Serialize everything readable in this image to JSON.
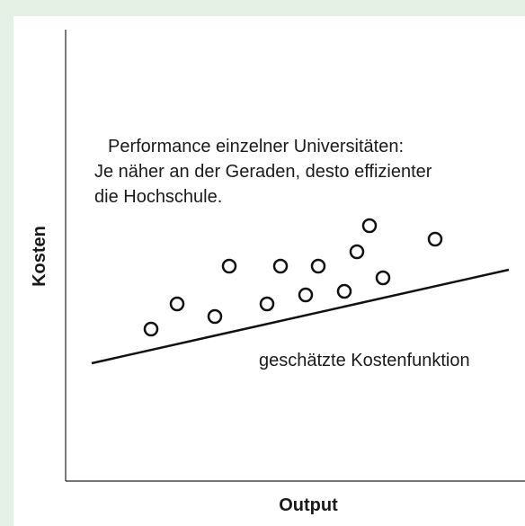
{
  "diagram": {
    "y_axis_label": "Kosten",
    "x_axis_label": "Output",
    "annotation": [
      "Performance einzelner Universitäten:",
      "Je näher an der Geraden, desto effizienter",
      "die Hochschule."
    ],
    "line_label": "geschätzte Kostenfunktion"
  }
}
